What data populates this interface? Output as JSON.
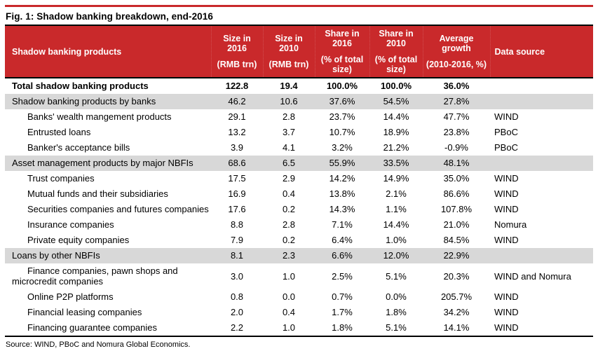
{
  "colors": {
    "accent": "#C9292B",
    "section_row_bg": "#D8D8D8",
    "header_text": "#FFFFFF",
    "body_text": "#000000"
  },
  "figure": {
    "title": "Fig. 1: Shadow banking breakdown, end-2016",
    "source": "Source: WIND, PBoC and Nomura Global Economics."
  },
  "table": {
    "columns": [
      {
        "title": "Shadow banking products",
        "subtitle": ""
      },
      {
        "title": "Size in 2016",
        "subtitle": "(RMB trn)"
      },
      {
        "title": "Size in 2010",
        "subtitle": "(RMB trn)"
      },
      {
        "title": "Share in 2016",
        "subtitle": "(% of total size)"
      },
      {
        "title": "Share in 2010",
        "subtitle": "(% of total size)"
      },
      {
        "title": "Average growth",
        "subtitle": "(2010-2016, %)"
      },
      {
        "title": "Data source",
        "subtitle": ""
      }
    ],
    "rows": [
      {
        "style": "total",
        "label": "Total shadow banking products",
        "values": [
          "122.8",
          "19.4",
          "100.0%",
          "100.0%",
          "36.0%",
          ""
        ]
      },
      {
        "style": "section",
        "label": "Shadow banking products by banks",
        "values": [
          "46.2",
          "10.6",
          "37.6%",
          "54.5%",
          "27.8%",
          ""
        ]
      },
      {
        "style": "item",
        "label": "Banks' wealth mangement products",
        "values": [
          "29.1",
          "2.8",
          "23.7%",
          "14.4%",
          "47.7%",
          "WIND"
        ]
      },
      {
        "style": "item",
        "label": "Entrusted loans",
        "values": [
          "13.2",
          "3.7",
          "10.7%",
          "18.9%",
          "23.8%",
          "PBoC"
        ]
      },
      {
        "style": "item",
        "label": "Banker's acceptance bills",
        "values": [
          "3.9",
          "4.1",
          "3.2%",
          "21.2%",
          "-0.9%",
          "PBoC"
        ]
      },
      {
        "style": "section",
        "label": "Asset management products by major NBFIs",
        "values": [
          "68.6",
          "6.5",
          "55.9%",
          "33.5%",
          "48.1%",
          ""
        ]
      },
      {
        "style": "item",
        "label": "Trust companies",
        "values": [
          "17.5",
          "2.9",
          "14.2%",
          "14.9%",
          "35.0%",
          "WIND"
        ]
      },
      {
        "style": "item",
        "label": "Mutual funds and their subsidiaries",
        "values": [
          "16.9",
          "0.4",
          "13.8%",
          "2.1%",
          "86.6%",
          "WIND"
        ]
      },
      {
        "style": "item",
        "label": "Securities companies and futures companies",
        "values": [
          "17.6",
          "0.2",
          "14.3%",
          "1.1%",
          "107.8%",
          "WIND"
        ]
      },
      {
        "style": "item",
        "label": "Insurance companies",
        "values": [
          "8.8",
          "2.8",
          "7.1%",
          "14.4%",
          "21.0%",
          "Nomura"
        ]
      },
      {
        "style": "item",
        "label": "Private equity companies",
        "values": [
          "7.9",
          "0.2",
          "6.4%",
          "1.0%",
          "84.5%",
          "WIND"
        ]
      },
      {
        "style": "section",
        "label": "Loans by other NBFIs",
        "values": [
          "8.1",
          "2.3",
          "6.6%",
          "12.0%",
          "22.9%",
          ""
        ]
      },
      {
        "style": "item wrap",
        "label": "Finance companies, pawn shops and microcredit companies",
        "values": [
          "3.0",
          "1.0",
          "2.5%",
          "5.1%",
          "20.3%",
          "WIND and Nomura"
        ]
      },
      {
        "style": "item",
        "label": "Online P2P platforms",
        "values": [
          "0.8",
          "0.0",
          "0.7%",
          "0.0%",
          "205.7%",
          "WIND"
        ]
      },
      {
        "style": "item",
        "label": "Financial leasing companies",
        "values": [
          "2.0",
          "0.4",
          "1.7%",
          "1.8%",
          "34.2%",
          "WIND"
        ]
      },
      {
        "style": "item",
        "label": "Financing guarantee companies",
        "values": [
          "2.2",
          "1.0",
          "1.8%",
          "5.1%",
          "14.1%",
          "WIND"
        ]
      }
    ]
  }
}
